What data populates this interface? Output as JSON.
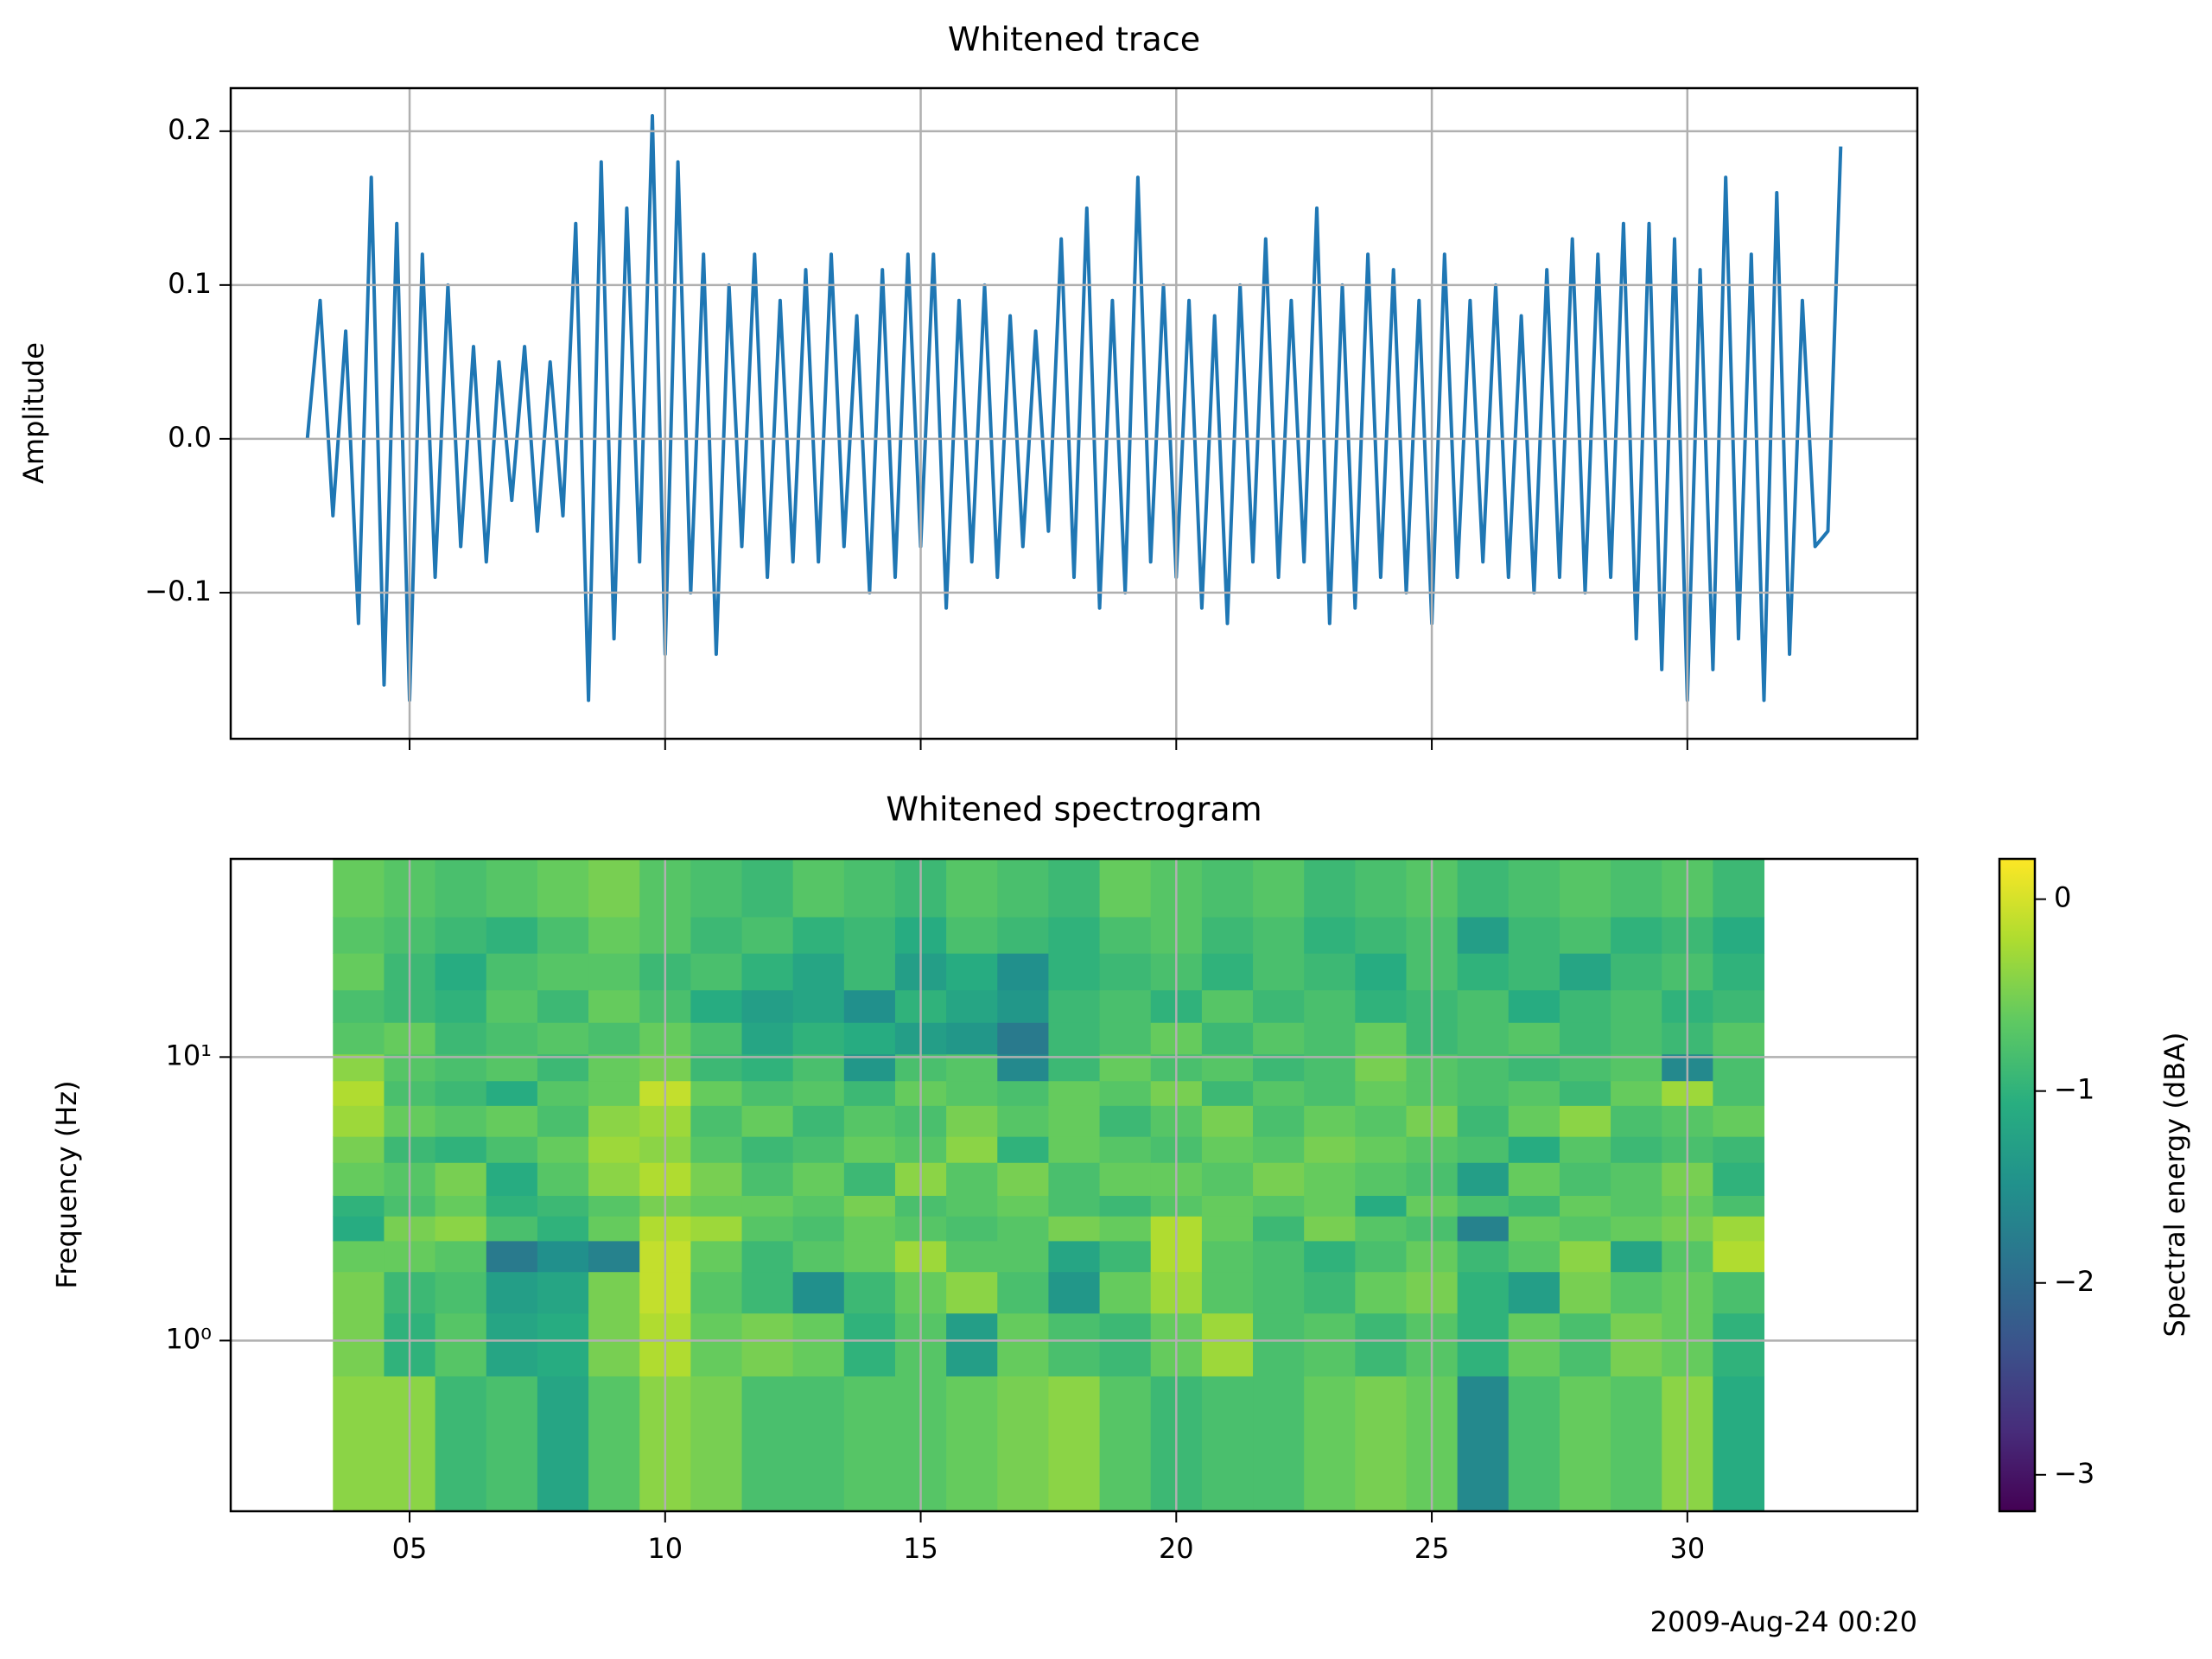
{
  "chart_data": [
    {
      "type": "line",
      "title": "Whitened trace",
      "ylabel": "Amplitude",
      "xlim": [
        1.5,
        34.5
      ],
      "xticks": [
        5,
        10,
        15,
        20,
        25,
        30
      ],
      "ylim": [
        -0.195,
        0.228
      ],
      "yticks": [
        {
          "value": -0.1,
          "label": "−0.1"
        },
        {
          "value": 0,
          "label": "0.0"
        },
        0.1,
        0.2
      ],
      "grid": true,
      "x": [
        3,
        3.25,
        3.5,
        3.75,
        4,
        4.25,
        4.5,
        4.75,
        5,
        5.25,
        5.5,
        5.75,
        6,
        6.25,
        6.5,
        6.75,
        7,
        7.25,
        7.5,
        7.75,
        8,
        8.25,
        8.5,
        8.75,
        9,
        9.25,
        9.5,
        9.75,
        10,
        10.25,
        10.5,
        10.75,
        11,
        11.25,
        11.5,
        11.75,
        12,
        12.25,
        12.5,
        12.75,
        13,
        13.25,
        13.5,
        13.75,
        14,
        14.25,
        14.5,
        14.75,
        15,
        15.25,
        15.5,
        15.75,
        16,
        16.25,
        16.5,
        16.75,
        17,
        17.25,
        17.5,
        17.75,
        18,
        18.25,
        18.5,
        18.75,
        19,
        19.25,
        19.5,
        19.75,
        20,
        20.25,
        20.5,
        20.75,
        21,
        21.25,
        21.5,
        21.75,
        22,
        22.25,
        22.5,
        22.75,
        23,
        23.25,
        23.5,
        23.75,
        24,
        24.25,
        24.5,
        24.75,
        25,
        25.25,
        25.5,
        25.75,
        26,
        26.25,
        26.5,
        26.75,
        27,
        27.25,
        27.5,
        27.75,
        28,
        28.25,
        28.5,
        28.75,
        29,
        29.25,
        29.5,
        29.75,
        30,
        30.25,
        30.5,
        30.75,
        31,
        31.25,
        31.5,
        31.75,
        32,
        32.25,
        32.5,
        32.75,
        33
      ],
      "series": [
        {
          "color": "#1f77b4",
          "values": [
            0,
            0.09,
            -0.05,
            0.07,
            -0.12,
            0.17,
            -0.16,
            0.14,
            -0.17,
            0.12,
            -0.09,
            0.1,
            -0.07,
            0.06,
            -0.08,
            0.05,
            -0.04,
            0.06,
            -0.06,
            0.05,
            -0.05,
            0.14,
            -0.17,
            0.18,
            -0.13,
            0.15,
            -0.08,
            0.21,
            -0.14,
            0.18,
            -0.1,
            0.12,
            -0.14,
            0.1,
            -0.07,
            0.12,
            -0.09,
            0.09,
            -0.08,
            0.11,
            -0.08,
            0.12,
            -0.07,
            0.08,
            -0.1,
            0.11,
            -0.09,
            0.12,
            -0.07,
            0.12,
            -0.11,
            0.09,
            -0.08,
            0.1,
            -0.09,
            0.08,
            -0.07,
            0.07,
            -0.06,
            0.13,
            -0.09,
            0.15,
            -0.11,
            0.09,
            -0.1,
            0.17,
            -0.08,
            0.1,
            -0.09,
            0.09,
            -0.11,
            0.08,
            -0.12,
            0.1,
            -0.08,
            0.13,
            -0.09,
            0.09,
            -0.08,
            0.15,
            -0.12,
            0.1,
            -0.11,
            0.12,
            -0.09,
            0.11,
            -0.1,
            0.09,
            -0.12,
            0.12,
            -0.09,
            0.09,
            -0.08,
            0.1,
            -0.09,
            0.08,
            -0.1,
            0.11,
            -0.09,
            0.13,
            -0.1,
            0.12,
            -0.09,
            0.14,
            -0.13,
            0.14,
            -0.15,
            0.13,
            -0.17,
            0.11,
            -0.15,
            0.17,
            -0.13,
            0.12,
            -0.17,
            0.16,
            -0.14,
            0.09,
            -0.07,
            -0.06,
            0.19
          ]
        }
      ]
    },
    {
      "type": "heatmap",
      "title": "Whitened spectrogram",
      "ylabel": "Frequency (Hz)",
      "x_offset_label": "2009-Aug-24 00:20",
      "xlim": [
        1.5,
        34.5
      ],
      "xticks": [
        {
          "value": 5,
          "label": "05"
        },
        10,
        15,
        20,
        25,
        30
      ],
      "yscale": "log",
      "ylim": [
        0.25,
        50
      ],
      "yticks": [
        {
          "value": 1,
          "label": "10⁰"
        },
        {
          "value": 10,
          "label": "10¹"
        }
      ],
      "grid": true,
      "colormap": "viridis",
      "x_edges": [
        3.5,
        4.5,
        5.5,
        6.5,
        7.5,
        8.5,
        9.5,
        10.5,
        11.5,
        12.5,
        13.5,
        14.5,
        15.5,
        16.5,
        17.5,
        18.5,
        19.5,
        20.5,
        21.5,
        22.5,
        23.5,
        24.5,
        25.5,
        26.5,
        27.5,
        28.5,
        29.5,
        30.5,
        31.5
      ],
      "y_edges": [
        0.25,
        0.75,
        1.25,
        1.75,
        2.25,
        2.75,
        3.25,
        4.25,
        5.25,
        6.75,
        8.25,
        10.25,
        13.25,
        17.25,
        23.25,
        31.25,
        50
      ],
      "values": [
        [
          -0.4,
          -0.4,
          -0.9,
          -0.8,
          -1.2,
          -0.7,
          -0.4,
          -0.5,
          -0.8,
          -0.8,
          -0.7,
          -0.7,
          -0.6,
          -0.5,
          -0.4,
          -0.7,
          -0.9,
          -0.8,
          -0.8,
          -0.6,
          -0.5,
          -0.6,
          -1.6,
          -0.8,
          -0.6,
          -0.7,
          -0.4,
          -1.1
        ],
        [
          -0.5,
          -1.0,
          -0.7,
          -1.2,
          -1.1,
          -0.5,
          -0.2,
          -0.6,
          -0.5,
          -0.6,
          -1.0,
          -0.7,
          -1.3,
          -0.6,
          -0.8,
          -0.9,
          -0.6,
          -0.3,
          -0.8,
          -0.7,
          -0.9,
          -0.7,
          -1.0,
          -0.6,
          -0.8,
          -0.5,
          -0.6,
          -1.0
        ],
        [
          -0.5,
          -0.9,
          -0.8,
          -1.3,
          -1.2,
          -0.5,
          -0.1,
          -0.7,
          -0.9,
          -1.5,
          -0.9,
          -0.6,
          -0.4,
          -0.8,
          -1.4,
          -0.6,
          -0.3,
          -0.7,
          -0.8,
          -0.9,
          -0.6,
          -0.5,
          -1.0,
          -1.3,
          -0.5,
          -0.7,
          -0.6,
          -0.8
        ],
        [
          -0.6,
          -0.6,
          -0.7,
          -1.8,
          -1.5,
          -1.7,
          -0.1,
          -0.6,
          -0.9,
          -0.7,
          -0.6,
          -0.3,
          -0.7,
          -0.7,
          -1.2,
          -0.9,
          -0.2,
          -0.7,
          -0.8,
          -1.0,
          -0.8,
          -0.6,
          -0.9,
          -0.7,
          -0.4,
          -1.2,
          -0.7,
          -0.2
        ],
        [
          -1.1,
          -0.5,
          -0.4,
          -0.8,
          -1.0,
          -0.6,
          -0.2,
          -0.3,
          -0.7,
          -0.8,
          -0.6,
          -0.7,
          -0.8,
          -0.7,
          -0.5,
          -0.6,
          -0.2,
          -0.6,
          -0.9,
          -0.5,
          -0.7,
          -0.8,
          -1.7,
          -0.6,
          -0.7,
          -0.6,
          -0.5,
          -0.3
        ],
        [
          -1.0,
          -0.8,
          -0.6,
          -1.0,
          -0.9,
          -0.7,
          -0.5,
          -0.6,
          -0.6,
          -0.7,
          -0.5,
          -0.8,
          -0.7,
          -0.6,
          -0.8,
          -0.9,
          -0.7,
          -0.6,
          -0.7,
          -0.6,
          -1.1,
          -0.6,
          -0.8,
          -0.9,
          -0.6,
          -0.7,
          -0.6,
          -0.8
        ],
        [
          -0.6,
          -0.7,
          -0.5,
          -1.1,
          -0.7,
          -0.4,
          -0.2,
          -0.5,
          -0.8,
          -0.6,
          -0.9,
          -0.4,
          -0.7,
          -0.5,
          -0.8,
          -0.6,
          -0.6,
          -0.7,
          -0.5,
          -0.6,
          -0.7,
          -0.8,
          -1.3,
          -0.6,
          -0.8,
          -0.7,
          -0.5,
          -1.0
        ],
        [
          -0.5,
          -0.9,
          -1.0,
          -0.8,
          -0.6,
          -0.3,
          -0.4,
          -0.7,
          -0.9,
          -0.8,
          -0.6,
          -0.7,
          -0.4,
          -1.0,
          -0.6,
          -0.7,
          -0.8,
          -0.6,
          -0.7,
          -0.5,
          -0.6,
          -0.7,
          -0.8,
          -1.1,
          -0.7,
          -0.9,
          -0.8,
          -0.9
        ],
        [
          -0.3,
          -0.6,
          -0.7,
          -0.6,
          -0.8,
          -0.4,
          -0.3,
          -0.8,
          -0.6,
          -0.9,
          -0.7,
          -0.8,
          -0.5,
          -0.7,
          -0.6,
          -0.9,
          -0.7,
          -0.5,
          -0.8,
          -0.6,
          -0.7,
          -0.5,
          -0.9,
          -0.6,
          -0.4,
          -0.8,
          -0.7,
          -0.6
        ],
        [
          -0.2,
          -0.8,
          -0.9,
          -1.1,
          -0.7,
          -0.6,
          -0.1,
          -0.6,
          -0.8,
          -0.7,
          -0.9,
          -0.6,
          -0.7,
          -0.8,
          -0.6,
          -0.7,
          -0.5,
          -0.9,
          -0.7,
          -0.8,
          -0.6,
          -0.7,
          -0.8,
          -0.7,
          -0.9,
          -0.6,
          -0.3,
          -0.8
        ],
        [
          -0.4,
          -0.7,
          -0.8,
          -0.7,
          -0.9,
          -0.6,
          -0.5,
          -0.9,
          -1.0,
          -0.8,
          -1.4,
          -0.8,
          -0.7,
          -1.6,
          -0.9,
          -0.6,
          -0.8,
          -0.7,
          -0.9,
          -0.8,
          -0.5,
          -0.7,
          -0.8,
          -0.9,
          -0.8,
          -0.7,
          -1.6,
          -0.8
        ],
        [
          -0.7,
          -0.6,
          -0.9,
          -0.8,
          -0.7,
          -0.8,
          -0.6,
          -0.8,
          -1.2,
          -1.0,
          -1.1,
          -1.3,
          -1.4,
          -1.8,
          -0.9,
          -0.8,
          -0.6,
          -0.9,
          -0.7,
          -0.8,
          -0.6,
          -0.9,
          -0.8,
          -0.7,
          -0.9,
          -0.8,
          -0.9,
          -0.7
        ],
        [
          -0.8,
          -0.9,
          -1.0,
          -0.7,
          -0.9,
          -0.6,
          -0.8,
          -1.1,
          -1.3,
          -1.2,
          -1.5,
          -1.0,
          -1.2,
          -1.4,
          -0.9,
          -0.8,
          -1.0,
          -0.7,
          -0.9,
          -0.8,
          -1.0,
          -0.9,
          -0.8,
          -1.1,
          -0.9,
          -0.8,
          -1.0,
          -0.9
        ],
        [
          -0.6,
          -0.9,
          -1.1,
          -0.8,
          -0.7,
          -0.7,
          -0.9,
          -0.8,
          -1.0,
          -1.2,
          -0.9,
          -1.3,
          -1.1,
          -1.5,
          -1.0,
          -0.9,
          -0.8,
          -1.0,
          -0.8,
          -0.9,
          -1.1,
          -0.8,
          -1.0,
          -0.9,
          -1.2,
          -0.9,
          -0.8,
          -1.0
        ],
        [
          -0.7,
          -0.8,
          -0.9,
          -1.0,
          -0.8,
          -0.6,
          -0.7,
          -0.9,
          -0.8,
          -1.0,
          -0.9,
          -1.1,
          -0.8,
          -0.9,
          -1.0,
          -0.8,
          -0.7,
          -0.9,
          -0.8,
          -1.0,
          -0.9,
          -0.8,
          -1.3,
          -0.9,
          -0.8,
          -1.0,
          -0.9,
          -1.1
        ],
        [
          -0.6,
          -0.7,
          -0.8,
          -0.7,
          -0.6,
          -0.5,
          -0.7,
          -0.8,
          -0.9,
          -0.7,
          -0.8,
          -0.9,
          -0.7,
          -0.8,
          -0.9,
          -0.6,
          -0.7,
          -0.8,
          -0.7,
          -0.9,
          -0.8,
          -0.7,
          -0.9,
          -0.8,
          -0.7,
          -0.8,
          -0.7,
          -0.9
        ]
      ],
      "colorbar": {
        "label": "Spectral energy (dBA)",
        "clim": [
          -3.19,
          0.21
        ],
        "ticks": [
          {
            "value": 0,
            "label": "0"
          },
          {
            "value": -1,
            "label": "−1"
          },
          {
            "value": -2,
            "label": "−2"
          },
          {
            "value": -3,
            "label": "−3"
          }
        ]
      }
    }
  ]
}
